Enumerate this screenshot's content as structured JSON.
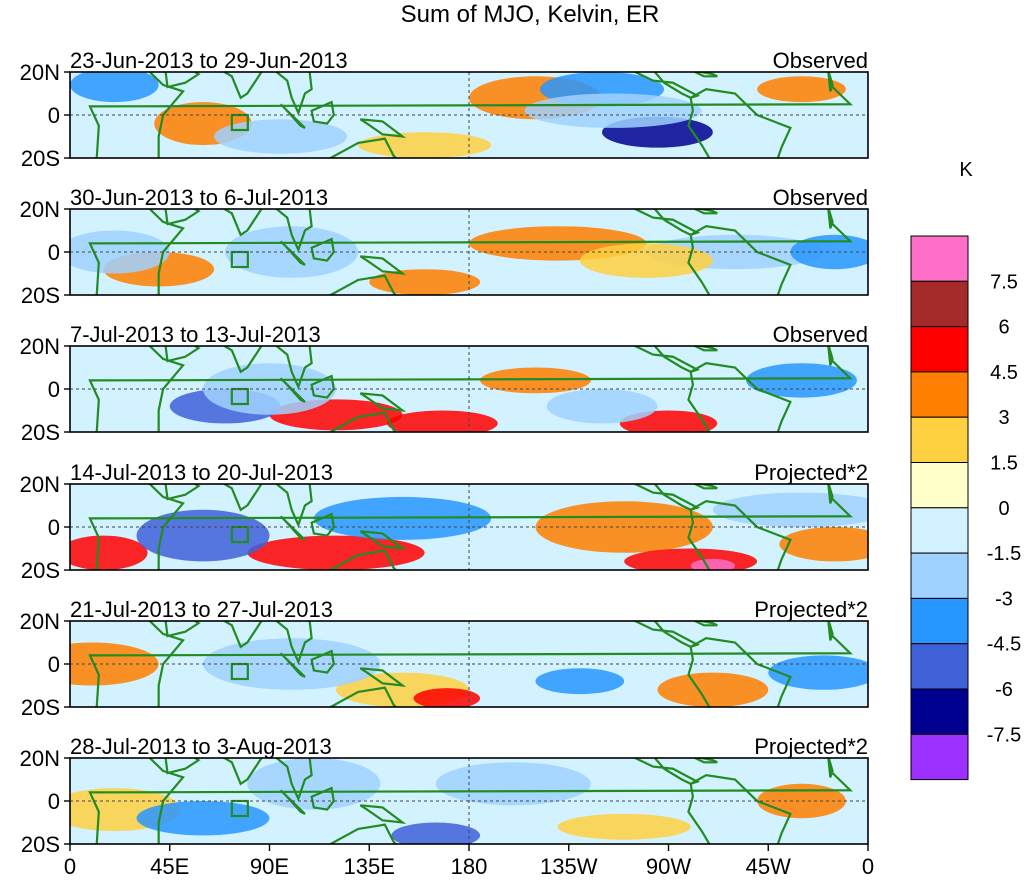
{
  "title": "Sum of MJO, Kelvin, ER",
  "panels": [
    {
      "date_range": "23-Jun-2013 to 29-Jun-2013",
      "label": "Observed"
    },
    {
      "date_range": "30-Jun-2013 to 6-Jul-2013",
      "label": "Observed"
    },
    {
      "date_range": "7-Jul-2013 to 13-Jul-2013",
      "label": "Observed"
    },
    {
      "date_range": "14-Jul-2013 to 20-Jul-2013",
      "label": "Projected*2"
    },
    {
      "date_range": "21-Jul-2013 to 27-Jul-2013",
      "label": "Projected*2"
    },
    {
      "date_range": "28-Jul-2013 to 3-Aug-2013",
      "label": "Projected*2"
    }
  ],
  "lat_labels": [
    "20N",
    "0",
    "20S"
  ],
  "lon_labels": [
    "0",
    "45E",
    "90E",
    "135E",
    "180",
    "135W",
    "90W",
    "45W",
    "0"
  ],
  "legend": {
    "unit": "K",
    "ticks": [
      "7.5",
      "6",
      "4.5",
      "3",
      "1.5",
      "0",
      "-1.5",
      "-3",
      "-4.5",
      "-6",
      "-7.5"
    ],
    "colors": [
      "#ff6ec7",
      "#a52a2a",
      "#ff0000",
      "#ff7f00",
      "#ffd040",
      "#ffffc8",
      "#d2f2ff",
      "#a0d2ff",
      "#2896ff",
      "#4060d8",
      "#000090",
      "#9b30ff"
    ]
  },
  "colors": {
    "coast": "#228b22",
    "frame": "#000000"
  }
}
